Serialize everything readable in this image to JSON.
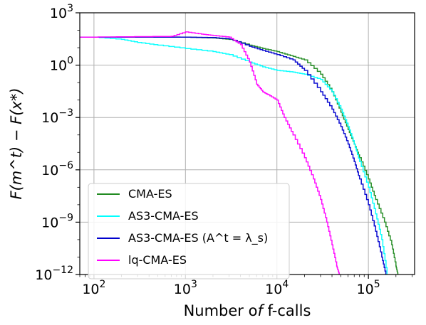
{
  "chart_data": {
    "type": "line",
    "xlabel": "Number of f-calls",
    "ylabel": "F(m^t) − F(x*)",
    "x_scale": "log",
    "y_scale": "log",
    "xlim": [
      70,
      320000
    ],
    "ylim": [
      1e-12,
      1000
    ],
    "x_ticks": [
      {
        "value": 100,
        "base": "10",
        "exp": "2"
      },
      {
        "value": 1000,
        "base": "10",
        "exp": "3"
      },
      {
        "value": 10000,
        "base": "10",
        "exp": "4"
      },
      {
        "value": 100000,
        "base": "10",
        "exp": "5"
      }
    ],
    "y_ticks": [
      {
        "value": 1000,
        "base": "10",
        "exp": "3"
      },
      {
        "value": 1,
        "base": "10",
        "exp": "0"
      },
      {
        "value": 0.001,
        "base": "10",
        "exp": "−3"
      },
      {
        "value": 1e-06,
        "base": "10",
        "exp": "−6"
      },
      {
        "value": 1e-09,
        "base": "10",
        "exp": "−9"
      },
      {
        "value": 1e-12,
        "base": "10",
        "exp": "−12"
      }
    ],
    "grid": true,
    "legend_position": "lower-left",
    "series": [
      {
        "name": "CMA-ES",
        "color": "#228b22",
        "x": [
          70,
          500,
          1000,
          2000,
          3000,
          5000,
          7000,
          10000,
          14000,
          20000,
          30000,
          40000,
          50000,
          60000,
          70000,
          80000,
          100000,
          120000,
          150000,
          180000,
          200000,
          210000
        ],
        "y": [
          40,
          42,
          40,
          36,
          30,
          14,
          9,
          6,
          3.5,
          2,
          0.3,
          0.03,
          0.002,
          0.0002,
          3e-05,
          5e-06,
          3e-07,
          2e-08,
          1e-09,
          5e-11,
          3e-12,
          1e-12
        ]
      },
      {
        "name": "AS3-CMA-ES",
        "color": "#00ffff",
        "x": [
          70,
          100,
          200,
          300,
          500,
          1000,
          2000,
          3000,
          5000,
          7000,
          10000,
          15000,
          20000,
          30000,
          40000,
          50000,
          60000,
          70000,
          80000,
          100000,
          120000,
          140000,
          160000
        ],
        "y": [
          40,
          40,
          30,
          20,
          14,
          9,
          6,
          4,
          1.5,
          0.8,
          0.5,
          0.4,
          0.3,
          0.15,
          0.03,
          0.003,
          0.0003,
          3e-05,
          3e-06,
          1e-07,
          3e-09,
          1e-10,
          1e-12
        ]
      },
      {
        "name": "AS3-CMA-ES (A^t = λ_s)",
        "color": "#0000cd",
        "x": [
          70,
          1000,
          2000,
          3000,
          5000,
          7000,
          10000,
          15000,
          20000,
          30000,
          40000,
          50000,
          60000,
          70000,
          80000,
          100000,
          120000,
          140000,
          155000
        ],
        "y": [
          40,
          40,
          38,
          32,
          12,
          7,
          4,
          2,
          0.5,
          0.03,
          0.003,
          0.0003,
          3e-05,
          3e-06,
          3e-07,
          1e-08,
          3e-10,
          1e-11,
          1e-12
        ]
      },
      {
        "name": "lq-CMA-ES",
        "color": "#ff00ff",
        "x": [
          70,
          700,
          1000,
          1500,
          2000,
          3000,
          4000,
          5000,
          6000,
          7000,
          8000,
          10000,
          12000,
          15000,
          20000,
          25000,
          30000,
          35000,
          40000,
          45000,
          48000
        ],
        "y": [
          40,
          45,
          80,
          60,
          50,
          40,
          15,
          1.5,
          0.08,
          0.03,
          0.02,
          0.01,
          0.001,
          0.0001,
          5e-06,
          3e-07,
          2e-08,
          1e-09,
          5e-11,
          3e-12,
          1e-12
        ]
      }
    ]
  }
}
